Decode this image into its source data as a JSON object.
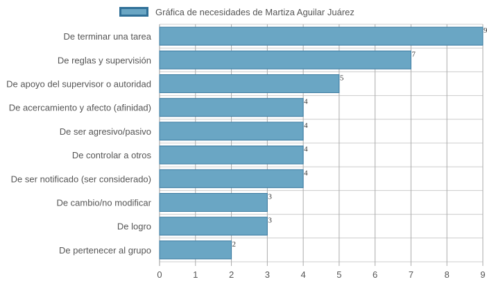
{
  "legend": {
    "label": "Gráfica de necesidades de Martiza Aguilar Juárez"
  },
  "colors": {
    "bar_fill": "#6aa6c4",
    "bar_stroke": "#3a7aa0",
    "legend_border": "#2f6f97",
    "grid": "#cccccc",
    "text": "#555555"
  },
  "chart_data": {
    "type": "bar",
    "orientation": "horizontal",
    "categories": [
      "De terminar una tarea",
      "De reglas y supervisión",
      "De apoyo del supervisor o autoridad",
      "De acercamiento y afecto (afinidad)",
      "De ser agresivo/pasivo",
      "De controlar a otros",
      "De ser notificado (ser considerado)",
      "De cambio/no modificar",
      "De logro",
      "De pertenecer al grupo"
    ],
    "series": [
      {
        "name": "Gráfica de necesidades de Martiza Aguilar Juárez",
        "values": [
          9,
          7,
          5,
          4,
          4,
          4,
          4,
          3,
          3,
          2
        ]
      }
    ],
    "xlim": [
      0,
      9
    ],
    "xticks": [
      "0",
      "1",
      "2",
      "3",
      "4",
      "5",
      "6",
      "7",
      "8",
      "9"
    ],
    "grid": true,
    "legend_position": "top",
    "data_labels": true
  }
}
